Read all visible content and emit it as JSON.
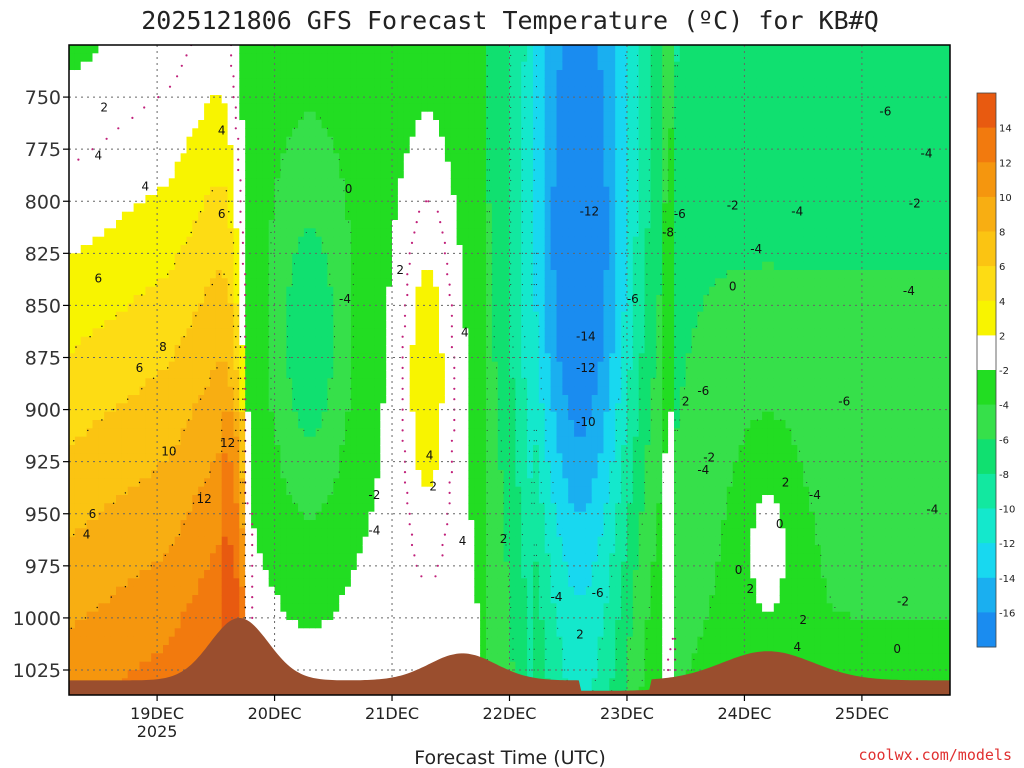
{
  "chart_data": {
    "type": "heatmap",
    "title": "2025121806 GFS Forecast Temperature (ºC) for KB#Q",
    "xlabel": "Forecast Time (UTC)",
    "ylabel": "",
    "credit": "coolwx.com/models",
    "x_ticks": [
      {
        "label": "19DEC",
        "sub": "2025",
        "t": 1
      },
      {
        "label": "20DEC",
        "sub": "",
        "t": 2
      },
      {
        "label": "21DEC",
        "sub": "",
        "t": 3
      },
      {
        "label": "22DEC",
        "sub": "",
        "t": 4
      },
      {
        "label": "23DEC",
        "sub": "",
        "t": 5
      },
      {
        "label": "24DEC",
        "sub": "",
        "t": 6
      },
      {
        "label": "25DEC",
        "sub": "",
        "t": 7
      }
    ],
    "y_ticks": [
      750,
      775,
      800,
      825,
      850,
      875,
      900,
      925,
      950,
      975,
      1000,
      1025
    ],
    "x_range_days": [
      0.25,
      7.75
    ],
    "y_range_hpa": [
      725,
      1037
    ],
    "colorbar_labels": [
      14,
      12,
      10,
      8,
      6,
      4,
      2,
      -2,
      -4,
      -6,
      -8,
      -10,
      -12,
      -14,
      -16
    ],
    "color_bins": [
      {
        "min": 14,
        "color": "#e85a10"
      },
      {
        "min": 12,
        "color": "#f27a0e"
      },
      {
        "min": 10,
        "color": "#f5960e"
      },
      {
        "min": 8,
        "color": "#f8ae12"
      },
      {
        "min": 6,
        "color": "#fbc412"
      },
      {
        "min": 4,
        "color": "#fddc14"
      },
      {
        "min": 2,
        "color": "#f8f400"
      },
      {
        "min": -2,
        "color": "#ffffff"
      },
      {
        "min": -4,
        "color": "#22dd22"
      },
      {
        "min": -6,
        "color": "#36e04a"
      },
      {
        "min": -8,
        "color": "#10e070"
      },
      {
        "min": -10,
        "color": "#12e8a0"
      },
      {
        "min": -12,
        "color": "#14e8cc"
      },
      {
        "min": -14,
        "color": "#18d8f0"
      },
      {
        "min": -16,
        "color": "#1aaff0"
      },
      {
        "min": -99,
        "color": "#1a8cf0"
      }
    ],
    "terrain_color": "#9a4e2e",
    "contour_labels": [
      {
        "v": "2",
        "t": 0.55,
        "p": 755
      },
      {
        "v": "4",
        "t": 0.5,
        "p": 778
      },
      {
        "v": "4",
        "t": 0.9,
        "p": 793
      },
      {
        "v": "4",
        "t": 1.55,
        "p": 766
      },
      {
        "v": "6",
        "t": 1.55,
        "p": 806
      },
      {
        "v": "6",
        "t": 0.5,
        "p": 837
      },
      {
        "v": "8",
        "t": 1.05,
        "p": 870
      },
      {
        "v": "6",
        "t": 0.85,
        "p": 880
      },
      {
        "v": "10",
        "t": 1.1,
        "p": 920
      },
      {
        "v": "12",
        "t": 1.6,
        "p": 916
      },
      {
        "v": "12",
        "t": 1.4,
        "p": 943
      },
      {
        "v": "6",
        "t": 0.45,
        "p": 950
      },
      {
        "v": "4",
        "t": 0.4,
        "p": 960
      },
      {
        "v": "0",
        "t": 2.63,
        "p": 794
      },
      {
        "v": "2",
        "t": 3.07,
        "p": 833
      },
      {
        "v": "-4",
        "t": 2.6,
        "p": 847
      },
      {
        "v": "4",
        "t": 3.62,
        "p": 863
      },
      {
        "v": "4",
        "t": 3.32,
        "p": 922
      },
      {
        "v": "2",
        "t": 3.35,
        "p": 937
      },
      {
        "v": "-2",
        "t": 2.85,
        "p": 941
      },
      {
        "v": "-4",
        "t": 2.85,
        "p": 958
      },
      {
        "v": "4",
        "t": 3.6,
        "p": 963
      },
      {
        "v": "2",
        "t": 3.95,
        "p": 962
      },
      {
        "v": "-12",
        "t": 4.68,
        "p": 805
      },
      {
        "v": "-14",
        "t": 4.65,
        "p": 865
      },
      {
        "v": "-12",
        "t": 4.65,
        "p": 880
      },
      {
        "v": "-10",
        "t": 4.65,
        "p": 906
      },
      {
        "v": "-6",
        "t": 5.05,
        "p": 847
      },
      {
        "v": "-4",
        "t": 4.4,
        "p": 990
      },
      {
        "v": "-6",
        "t": 4.75,
        "p": 988
      },
      {
        "v": "2",
        "t": 4.6,
        "p": 1008
      },
      {
        "v": "-6",
        "t": 5.45,
        "p": 806
      },
      {
        "v": "-8",
        "t": 5.35,
        "p": 815
      },
      {
        "v": "-2",
        "t": 5.9,
        "p": 802
      },
      {
        "v": "-4",
        "t": 6.45,
        "p": 805
      },
      {
        "v": "-4",
        "t": 6.1,
        "p": 823
      },
      {
        "v": "0",
        "t": 5.9,
        "p": 841
      },
      {
        "v": "-6",
        "t": 5.65,
        "p": 891
      },
      {
        "v": "2",
        "t": 5.5,
        "p": 896
      },
      {
        "v": "-2",
        "t": 5.7,
        "p": 923
      },
      {
        "v": "-4",
        "t": 5.65,
        "p": 929
      },
      {
        "v": "2",
        "t": 6.35,
        "p": 935
      },
      {
        "v": "-4",
        "t": 6.6,
        "p": 941
      },
      {
        "v": "-6",
        "t": 6.85,
        "p": 896
      },
      {
        "v": "0",
        "t": 6.3,
        "p": 955
      },
      {
        "v": "0",
        "t": 5.95,
        "p": 977
      },
      {
        "v": "2",
        "t": 6.05,
        "p": 986
      },
      {
        "v": "2",
        "t": 6.5,
        "p": 1001
      },
      {
        "v": "4",
        "t": 6.45,
        "p": 1014
      },
      {
        "v": "-6",
        "t": 7.2,
        "p": 757
      },
      {
        "v": "-4",
        "t": 7.55,
        "p": 777
      },
      {
        "v": "-2",
        "t": 7.45,
        "p": 801
      },
      {
        "v": "-4",
        "t": 7.4,
        "p": 843
      },
      {
        "v": "-4",
        "t": 7.6,
        "p": 948
      },
      {
        "v": "-2",
        "t": 7.35,
        "p": 992
      },
      {
        "v": "0",
        "t": 7.3,
        "p": 1015
      }
    ]
  }
}
